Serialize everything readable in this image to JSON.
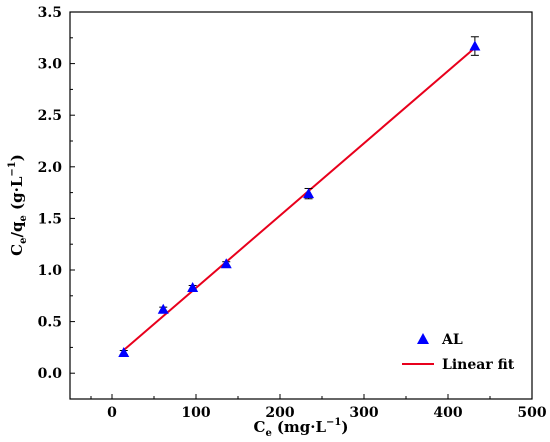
{
  "chart_data": {
    "type": "scatter",
    "xlabel": {
      "main": "C",
      "sub": "e",
      "unit": "(mg·L",
      "sup": "−1",
      "close": ")"
    },
    "ylabel": {
      "main1": "C",
      "sub1": "e",
      "slash": "/q",
      "sub2": "e",
      "unit": " (g·L",
      "sup": "−1",
      "close": ")"
    },
    "xlim": [
      -50,
      500
    ],
    "ylim": [
      -0.25,
      3.5
    ],
    "xticks": [
      0,
      100,
      200,
      300,
      400,
      500
    ],
    "yticks": [
      0.0,
      0.5,
      1.0,
      1.5,
      2.0,
      2.5,
      3.0,
      3.5
    ],
    "xtick_labels": [
      "0",
      "100",
      "200",
      "300",
      "400",
      "500"
    ],
    "ytick_labels": [
      "0.0",
      "0.5",
      "1.0",
      "1.5",
      "2.0",
      "2.5",
      "3.0",
      "3.5"
    ],
    "series": [
      {
        "name": "AL",
        "kind": "points",
        "marker": "triangle",
        "color": "#0000ff",
        "x": [
          14,
          61,
          96,
          136,
          234,
          432
        ],
        "y": [
          0.2,
          0.62,
          0.83,
          1.06,
          1.74,
          3.17
        ],
        "yerr": [
          0.02,
          0.02,
          0.02,
          0.02,
          0.05,
          0.09
        ]
      },
      {
        "name": "Linear fit",
        "kind": "line",
        "color": "#e8001c",
        "x": [
          12,
          433
        ],
        "y": [
          0.21,
          3.16
        ]
      }
    ],
    "legend": {
      "position": "bottom-right"
    },
    "grid": false
  }
}
